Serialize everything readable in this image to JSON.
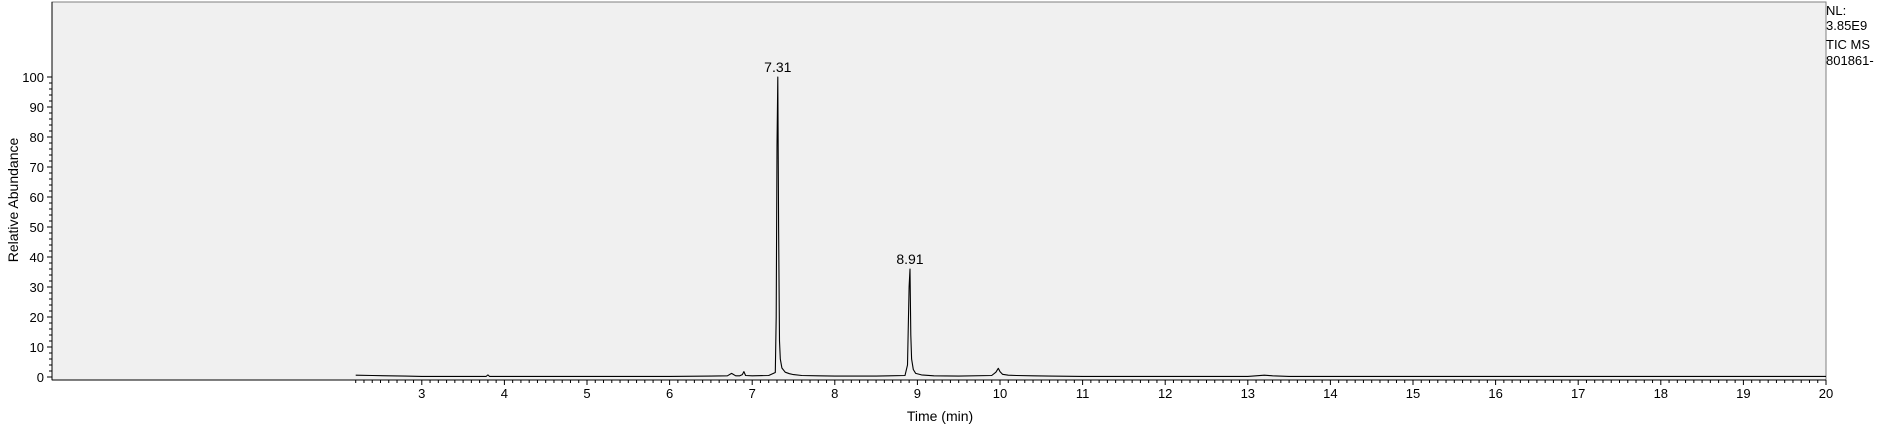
{
  "chart_data": {
    "type": "line",
    "title": "",
    "xlabel": "Time (min)",
    "ylabel": "Relative Abundance",
    "xlim": [
      2.2,
      20
    ],
    "ylim": [
      0,
      100
    ],
    "x_ticks": [
      3,
      4,
      5,
      6,
      7,
      8,
      9,
      10,
      11,
      12,
      13,
      14,
      15,
      16,
      17,
      18,
      19,
      20
    ],
    "y_ticks": [
      0,
      10,
      20,
      30,
      40,
      50,
      60,
      70,
      80,
      90,
      100
    ],
    "grid": false,
    "series": [
      {
        "name": "",
        "x": [
          2.2,
          2.4,
          2.6,
          2.8,
          3.0,
          3.2,
          3.4,
          3.6,
          3.78,
          3.8,
          3.82,
          4.0,
          4.5,
          5.0,
          5.5,
          6.0,
          6.5,
          6.7,
          6.75,
          6.8,
          6.85,
          6.88,
          6.9,
          6.92,
          7.0,
          7.2,
          7.28,
          7.29,
          7.3,
          7.31,
          7.32,
          7.33,
          7.34,
          7.36,
          7.4,
          7.45,
          7.5,
          7.6,
          7.8,
          8.0,
          8.5,
          8.85,
          8.88,
          8.9,
          8.91,
          8.92,
          8.93,
          8.95,
          8.98,
          9.05,
          9.2,
          9.5,
          9.9,
          9.95,
          9.98,
          10.0,
          10.03,
          10.1,
          10.2,
          10.4,
          10.6,
          11.0,
          12.0,
          13.0,
          13.1,
          13.2,
          13.3,
          13.5,
          14.0,
          15.0,
          16.0,
          17.0,
          18.0,
          19.0,
          20.0
        ],
        "y": [
          0.6,
          0.5,
          0.4,
          0.3,
          0.2,
          0.2,
          0.2,
          0.2,
          0.2,
          0.7,
          0.2,
          0.2,
          0.2,
          0.2,
          0.2,
          0.2,
          0.3,
          0.4,
          1.2,
          0.4,
          0.4,
          0.8,
          1.8,
          0.5,
          0.4,
          0.5,
          1.5,
          20,
          77,
          100,
          50,
          12,
          6,
          3,
          1.6,
          1.1,
          0.8,
          0.5,
          0.4,
          0.3,
          0.3,
          0.5,
          4,
          30,
          36,
          14,
          6,
          2.5,
          1.2,
          0.7,
          0.4,
          0.3,
          0.5,
          1.6,
          2.9,
          1.8,
          0.9,
          0.6,
          0.5,
          0.4,
          0.3,
          0.2,
          0.2,
          0.2,
          0.4,
          0.6,
          0.4,
          0.2,
          0.2,
          0.2,
          0.2,
          0.2,
          0.2,
          0.2,
          0.2
        ]
      }
    ],
    "annotations": [
      {
        "x": 7.31,
        "y": 100,
        "text": "7.31"
      },
      {
        "x": 8.91,
        "y": 36,
        "text": "8.91"
      }
    ]
  },
  "info_panel": {
    "nl_label": "NL:",
    "nl_value": "3.85E9",
    "scan_filter": "TIC  MS",
    "file_name": "801861-"
  },
  "colors": {
    "plot_background": "#f0f0f0",
    "trace": "#000000",
    "axis": "#000000"
  }
}
